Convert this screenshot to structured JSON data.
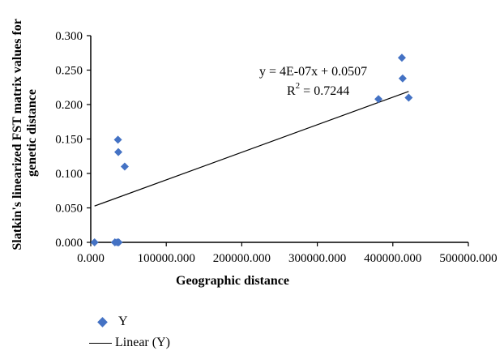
{
  "chart_data": {
    "type": "scatter",
    "xlabel": "Geographic distance",
    "ylabel_lines": [
      "Slatkin's linearized FST matrix values for",
      "genetic distance"
    ],
    "xlim": [
      0,
      500000
    ],
    "ylim": [
      0,
      0.3
    ],
    "x_ticks": [
      0,
      100000,
      200000,
      300000,
      400000,
      500000
    ],
    "x_tick_labels": [
      "0.000",
      "100000.000",
      "200000.000",
      "300000.000",
      "400000.000",
      "500000.000"
    ],
    "y_ticks": [
      0,
      0.05,
      0.1,
      0.15,
      0.2,
      0.25,
      0.3
    ],
    "y_tick_labels": [
      "0.000",
      "0.050",
      "0.100",
      "0.150",
      "0.200",
      "0.250",
      "0.300"
    ],
    "series": [
      {
        "name": "Y",
        "color": "#4472c4",
        "marker": "diamond",
        "x": [
          5000,
          32000,
          35000,
          37000,
          36000,
          36500,
          45000,
          381000,
          412000,
          413000,
          421000
        ],
        "y": [
          0.0,
          0.0,
          0.0,
          0.0,
          0.149,
          0.131,
          0.11,
          0.208,
          0.268,
          0.238,
          0.21
        ]
      }
    ],
    "trendline": {
      "name": "Linear (Y)",
      "slope": 4e-07,
      "intercept": 0.0507,
      "x_range": [
        5000,
        421000
      ],
      "equation": "y = 4E-07x + 0.0507",
      "r2_label": "R",
      "r2_sup": "2",
      "r2_value": " = 0.7244"
    },
    "legend": {
      "placement": "bottom-left",
      "entries": [
        "Y",
        "Linear (Y)"
      ]
    },
    "grid": false
  }
}
